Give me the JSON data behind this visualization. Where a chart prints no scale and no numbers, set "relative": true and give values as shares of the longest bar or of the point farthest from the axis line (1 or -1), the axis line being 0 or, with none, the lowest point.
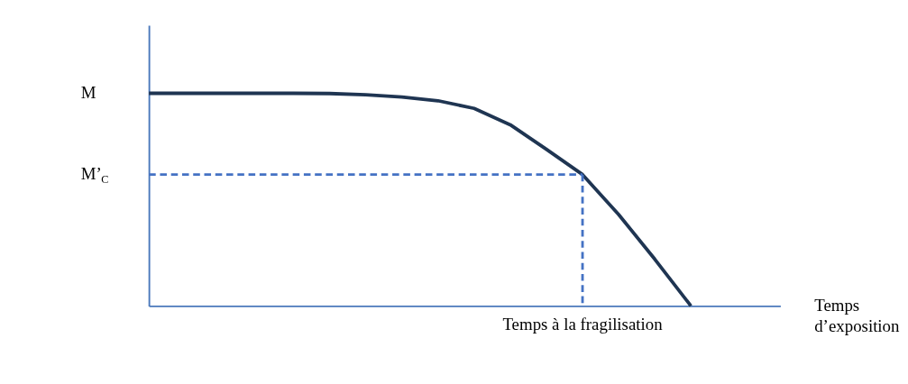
{
  "chart_data": {
    "type": "line",
    "relative": true,
    "categories": [
      null,
      null,
      null,
      null,
      null,
      null,
      null,
      null,
      null,
      null,
      null,
      null,
      null,
      null,
      null,
      null
    ],
    "series": [
      {
        "color": "#1f3552",
        "values": [
          1,
          1,
          1,
          1,
          1,
          0.999,
          0.993,
          0.983,
          0.965,
          0.929,
          0.852,
          0.737,
          0.618,
          0.43,
          0.22,
          0
        ]
      }
    ],
    "annotations": [
      "M",
      "Temps d’exposition",
      {
        "text": "Temps à la fragilisation",
        "y": 0.618
      }
    ],
    "ref_lines": [
      {
        "axis": "y",
        "value": 0.618,
        "label": "M’$_{C}$",
        "color": "#4472c4",
        "line_style": "dashed"
      }
    ],
    "marker": "none",
    "line_style": "solid"
  }
}
